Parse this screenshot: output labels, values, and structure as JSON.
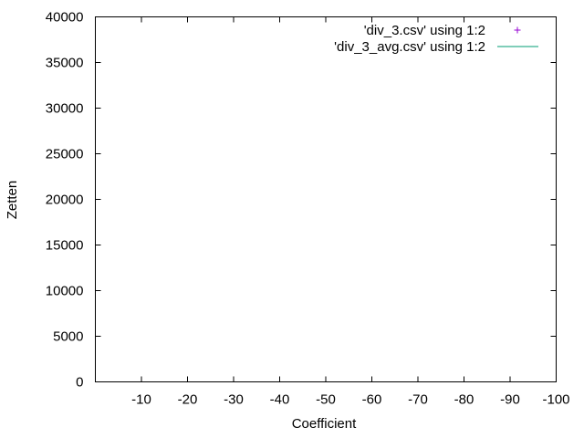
{
  "chart_data": {
    "type": "scatter",
    "xlabel": "Coefficient",
    "ylabel": "Zetten",
    "x_reversed": true,
    "xlim": [
      0,
      -100
    ],
    "ylim": [
      0,
      40000
    ],
    "x_ticks": [
      -10,
      -20,
      -30,
      -40,
      -50,
      -60,
      -70,
      -80,
      -90,
      -100
    ],
    "y_ticks": [
      0,
      5000,
      10000,
      15000,
      20000,
      25000,
      30000,
      35000,
      40000
    ],
    "grid": false,
    "legend_position": "top-right",
    "series": [
      {
        "name": "'div_3.csv' using 1:2",
        "marker": "plus",
        "color": "#9400d3",
        "points": []
      },
      {
        "name": "'div_3_avg.csv' using 1:2",
        "marker": "line",
        "color": "#009e73",
        "points": []
      }
    ]
  }
}
